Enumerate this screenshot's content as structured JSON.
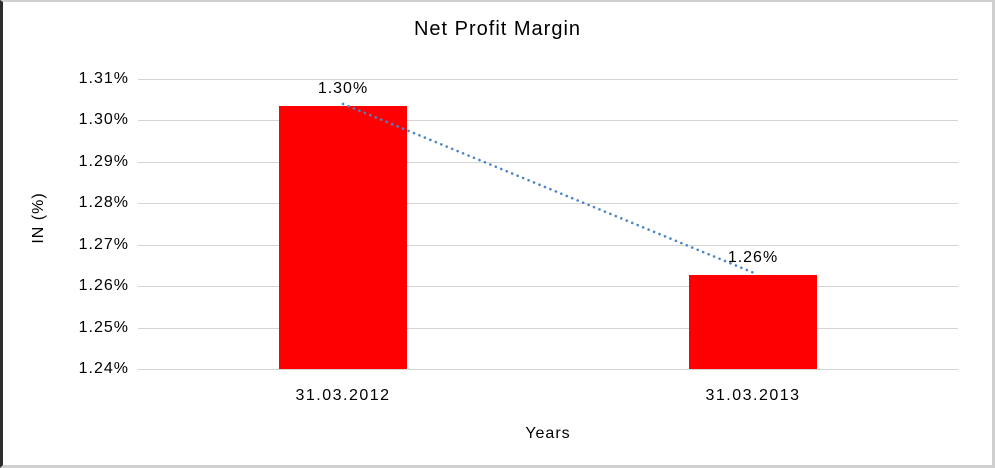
{
  "chart_data": {
    "type": "bar",
    "title": "Net Profit Margin",
    "xlabel": "Years",
    "ylabel": "IN (%)",
    "categories": [
      "31.03.2012",
      "31.03.2013"
    ],
    "values": [
      1.3,
      1.26
    ],
    "data_labels": [
      "1.30%",
      "1.26%"
    ],
    "values_plotted_estimate": [
      1.3035,
      1.2628
    ],
    "ylim": [
      1.24,
      1.31
    ],
    "ytick_step": 0.01,
    "yticks": [
      "1.24%",
      "1.25%",
      "1.26%",
      "1.27%",
      "1.28%",
      "1.29%",
      "1.30%",
      "1.31%"
    ],
    "grid": true,
    "legend_position": "none",
    "trendline": {
      "type": "linear",
      "style": "dotted",
      "color": "#4c86c6"
    },
    "colors": {
      "bar": "#ff0000",
      "gridline": "#d4d4d4",
      "text": "#000000"
    }
  }
}
